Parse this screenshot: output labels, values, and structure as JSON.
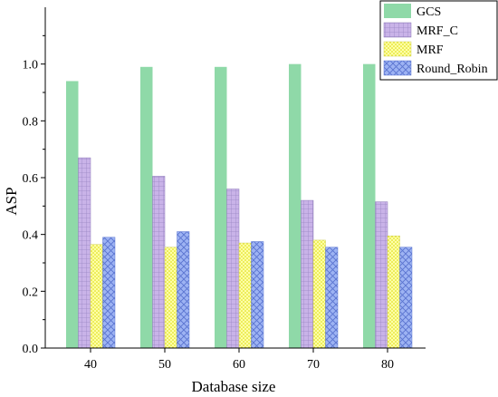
{
  "chart_data": {
    "type": "bar",
    "title": "",
    "xlabel": "Database size",
    "ylabel": "ASP",
    "categories": [
      "40",
      "50",
      "60",
      "70",
      "80"
    ],
    "ylim": [
      0,
      1.2
    ],
    "yticks": [
      "0.0",
      "0.2",
      "0.4",
      "0.6",
      "0.8",
      "1.0"
    ],
    "legend_position": "top-right",
    "grid": false,
    "series": [
      {
        "name": "GCS",
        "values": [
          0.94,
          0.99,
          0.99,
          1.0,
          1.0
        ],
        "color": "#8fd9a8",
        "pattern": "solid"
      },
      {
        "name": "MRF_C",
        "values": [
          0.67,
          0.605,
          0.56,
          0.52,
          0.515
        ],
        "color": "#c9b3e8",
        "pattern": "grid"
      },
      {
        "name": "MRF",
        "values": [
          0.365,
          0.355,
          0.37,
          0.38,
          0.395
        ],
        "color": "#ffff99",
        "pattern": "dots"
      },
      {
        "name": "Round_Robin",
        "values": [
          0.39,
          0.41,
          0.375,
          0.355,
          0.355
        ],
        "color": "#8fa8f0",
        "pattern": "crosshatch"
      }
    ]
  }
}
